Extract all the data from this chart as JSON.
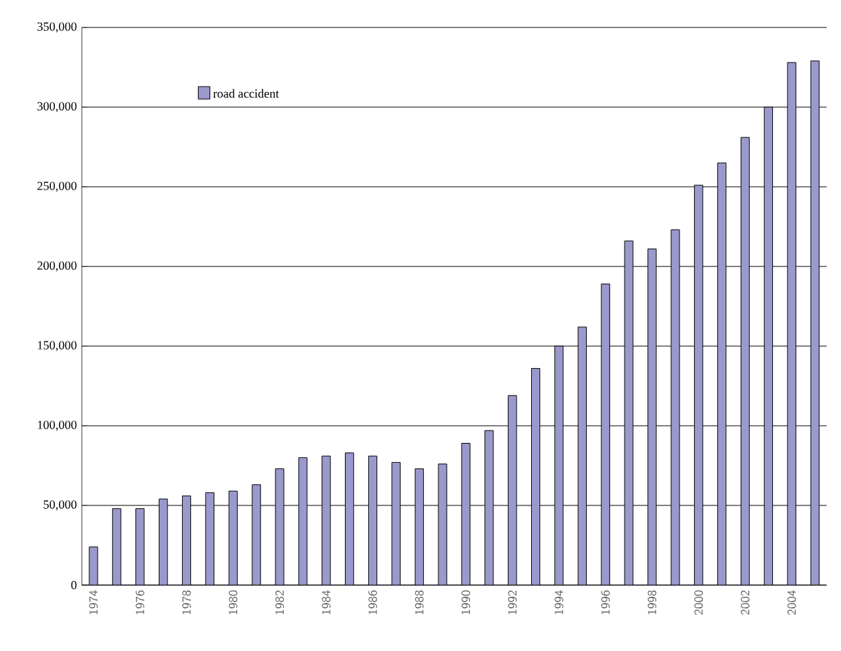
{
  "chart_data": {
    "type": "bar",
    "categories": [
      "1974",
      null,
      "1976",
      null,
      "1978",
      null,
      "1980",
      null,
      "1982",
      null,
      "1984",
      null,
      "1986",
      null,
      "1988",
      null,
      "1990",
      null,
      "1992",
      null,
      "1994",
      null,
      "1996",
      null,
      "1998",
      null,
      "2000",
      null,
      "2002",
      null,
      "2004",
      null
    ],
    "series": [
      {
        "name": "road accident",
        "color": "#9999cc",
        "values": [
          24000,
          48000,
          48000,
          54000,
          56000,
          58000,
          59000,
          63000,
          73000,
          80000,
          81000,
          83000,
          81000,
          77000,
          73000,
          76000,
          89000,
          97000,
          119000,
          136000,
          150000,
          162000,
          189000,
          216000,
          211000,
          223000,
          251000,
          265000,
          281000,
          300000,
          328000,
          329000
        ]
      }
    ],
    "ylim": [
      0,
      350000
    ],
    "yticks": [
      {
        "value": 0,
        "label": "0"
      },
      {
        "value": 50000,
        "label": "50,000"
      },
      {
        "value": 100000,
        "label": "100,000"
      },
      {
        "value": 150000,
        "label": "150,000"
      },
      {
        "value": 200000,
        "label": "200,000"
      },
      {
        "value": 250000,
        "label": "250,000"
      },
      {
        "value": 300000,
        "label": "300,000"
      },
      {
        "value": 350000,
        "label": "350,000"
      }
    ],
    "grid": "y",
    "legend": "top left"
  }
}
